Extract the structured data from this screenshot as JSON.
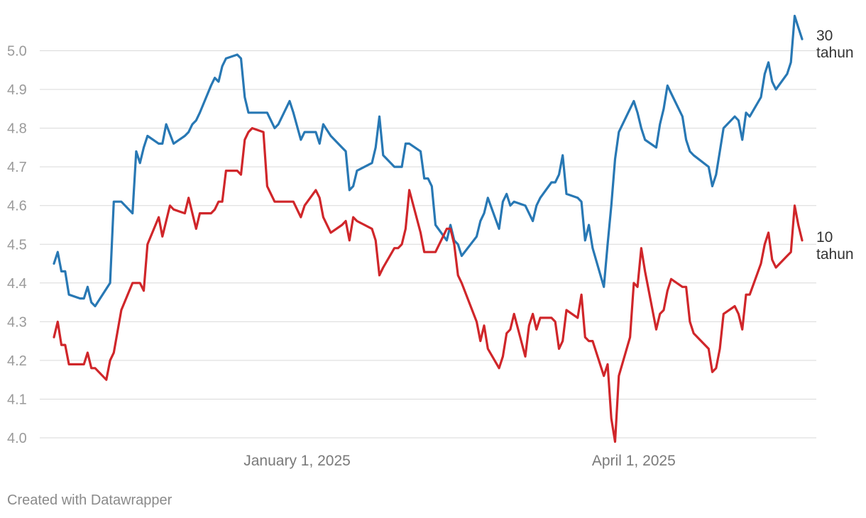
{
  "footer": {
    "credit": "Created with Datawrapper"
  },
  "chart_data": {
    "type": "line",
    "title": "",
    "xlabel": "",
    "ylabel": "",
    "grid": true,
    "legend": "direct labels at line ends (right)",
    "xlim": [
      "2024-10-28",
      "2025-06-03"
    ],
    "ylim": [
      4.0,
      5.1
    ],
    "y_ticks": [
      "4.0",
      "4.1",
      "4.2",
      "4.3",
      "4.4",
      "4.5",
      "4.6",
      "4.7",
      "4.8",
      "4.9",
      "5.0"
    ],
    "x_ticks": [
      {
        "date": "2025-01-01",
        "label": "January 1, 2025"
      },
      {
        "date": "2025-04-01",
        "label": "April 1, 2025"
      }
    ],
    "series": [
      {
        "name": "30 tahun",
        "label_lines": [
          "30",
          "tahun"
        ],
        "color": "#2878b4",
        "points": [
          [
            "2024-10-28",
            4.45
          ],
          [
            "2024-10-29",
            4.48
          ],
          [
            "2024-10-30",
            4.43
          ],
          [
            "2024-10-31",
            4.43
          ],
          [
            "2024-11-01",
            4.37
          ],
          [
            "2024-11-04",
            4.36
          ],
          [
            "2024-11-05",
            4.36
          ],
          [
            "2024-11-06",
            4.39
          ],
          [
            "2024-11-07",
            4.35
          ],
          [
            "2024-11-08",
            4.34
          ],
          [
            "2024-11-12",
            4.4
          ],
          [
            "2024-11-13",
            4.61
          ],
          [
            "2024-11-14",
            4.61
          ],
          [
            "2024-11-15",
            4.61
          ],
          [
            "2024-11-18",
            4.58
          ],
          [
            "2024-11-19",
            4.74
          ],
          [
            "2024-11-20",
            4.71
          ],
          [
            "2024-11-21",
            4.75
          ],
          [
            "2024-11-22",
            4.78
          ],
          [
            "2024-11-25",
            4.76
          ],
          [
            "2024-11-26",
            4.76
          ],
          [
            "2024-11-27",
            4.81
          ],
          [
            "2024-11-29",
            4.76
          ],
          [
            "2024-12-02",
            4.78
          ],
          [
            "2024-12-03",
            4.79
          ],
          [
            "2024-12-04",
            4.81
          ],
          [
            "2024-12-05",
            4.82
          ],
          [
            "2024-12-06",
            4.84
          ],
          [
            "2024-12-09",
            4.91
          ],
          [
            "2024-12-10",
            4.93
          ],
          [
            "2024-12-11",
            4.92
          ],
          [
            "2024-12-12",
            4.96
          ],
          [
            "2024-12-13",
            4.98
          ],
          [
            "2024-12-16",
            4.99
          ],
          [
            "2024-12-17",
            4.98
          ],
          [
            "2024-12-18",
            4.88
          ],
          [
            "2024-12-19",
            4.84
          ],
          [
            "2024-12-20",
            4.84
          ],
          [
            "2024-12-23",
            4.84
          ],
          [
            "2024-12-24",
            4.84
          ],
          [
            "2024-12-26",
            4.8
          ],
          [
            "2024-12-27",
            4.81
          ],
          [
            "2024-12-30",
            4.87
          ],
          [
            "2024-12-31",
            4.84
          ],
          [
            "2025-01-02",
            4.77
          ],
          [
            "2025-01-03",
            4.79
          ],
          [
            "2025-01-06",
            4.79
          ],
          [
            "2025-01-07",
            4.76
          ],
          [
            "2025-01-08",
            4.81
          ],
          [
            "2025-01-10",
            4.78
          ],
          [
            "2025-01-13",
            4.75
          ],
          [
            "2025-01-14",
            4.74
          ],
          [
            "2025-01-15",
            4.64
          ],
          [
            "2025-01-16",
            4.65
          ],
          [
            "2025-01-17",
            4.69
          ],
          [
            "2025-01-21",
            4.71
          ],
          [
            "2025-01-22",
            4.75
          ],
          [
            "2025-01-23",
            4.83
          ],
          [
            "2025-01-24",
            4.73
          ],
          [
            "2025-01-27",
            4.7
          ],
          [
            "2025-01-28",
            4.7
          ],
          [
            "2025-01-29",
            4.7
          ],
          [
            "2025-01-30",
            4.76
          ],
          [
            "2025-01-31",
            4.76
          ],
          [
            "2025-02-03",
            4.74
          ],
          [
            "2025-02-04",
            4.67
          ],
          [
            "2025-02-05",
            4.67
          ],
          [
            "2025-02-06",
            4.65
          ],
          [
            "2025-02-07",
            4.55
          ],
          [
            "2025-02-10",
            4.51
          ],
          [
            "2025-02-11",
            4.55
          ],
          [
            "2025-02-12",
            4.51
          ],
          [
            "2025-02-13",
            4.5
          ],
          [
            "2025-02-14",
            4.47
          ],
          [
            "2025-02-18",
            4.52
          ],
          [
            "2025-02-19",
            4.56
          ],
          [
            "2025-02-20",
            4.58
          ],
          [
            "2025-02-21",
            4.62
          ],
          [
            "2025-02-24",
            4.54
          ],
          [
            "2025-02-25",
            4.61
          ],
          [
            "2025-02-26",
            4.63
          ],
          [
            "2025-02-27",
            4.6
          ],
          [
            "2025-02-28",
            4.61
          ],
          [
            "2025-03-03",
            4.6
          ],
          [
            "2025-03-04",
            4.58
          ],
          [
            "2025-03-05",
            4.56
          ],
          [
            "2025-03-06",
            4.6
          ],
          [
            "2025-03-07",
            4.62
          ],
          [
            "2025-03-10",
            4.66
          ],
          [
            "2025-03-11",
            4.66
          ],
          [
            "2025-03-12",
            4.68
          ],
          [
            "2025-03-13",
            4.73
          ],
          [
            "2025-03-14",
            4.63
          ],
          [
            "2025-03-17",
            4.62
          ],
          [
            "2025-03-18",
            4.61
          ],
          [
            "2025-03-19",
            4.51
          ],
          [
            "2025-03-20",
            4.55
          ],
          [
            "2025-03-21",
            4.49
          ],
          [
            "2025-03-24",
            4.39
          ],
          [
            "2025-03-25",
            4.5
          ],
          [
            "2025-03-26",
            4.6
          ],
          [
            "2025-03-27",
            4.72
          ],
          [
            "2025-03-28",
            4.79
          ],
          [
            "2025-03-31",
            4.85
          ],
          [
            "2025-04-01",
            4.87
          ],
          [
            "2025-04-02",
            4.84
          ],
          [
            "2025-04-03",
            4.8
          ],
          [
            "2025-04-04",
            4.77
          ],
          [
            "2025-04-07",
            4.75
          ],
          [
            "2025-04-08",
            4.81
          ],
          [
            "2025-04-09",
            4.85
          ],
          [
            "2025-04-10",
            4.91
          ],
          [
            "2025-04-11",
            4.89
          ],
          [
            "2025-04-14",
            4.83
          ],
          [
            "2025-04-15",
            4.77
          ],
          [
            "2025-04-16",
            4.74
          ],
          [
            "2025-04-17",
            4.73
          ],
          [
            "2025-04-21",
            4.7
          ],
          [
            "2025-04-22",
            4.65
          ],
          [
            "2025-04-23",
            4.68
          ],
          [
            "2025-04-24",
            4.74
          ],
          [
            "2025-04-25",
            4.8
          ],
          [
            "2025-04-28",
            4.83
          ],
          [
            "2025-04-29",
            4.82
          ],
          [
            "2025-04-30",
            4.77
          ],
          [
            "2025-05-01",
            4.84
          ],
          [
            "2025-05-02",
            4.83
          ],
          [
            "2025-05-05",
            4.88
          ],
          [
            "2025-05-06",
            4.94
          ],
          [
            "2025-05-07",
            4.97
          ],
          [
            "2025-05-08",
            4.92
          ],
          [
            "2025-05-09",
            4.9
          ],
          [
            "2025-05-12",
            4.94
          ],
          [
            "2025-05-13",
            4.97
          ],
          [
            "2025-05-14",
            5.09
          ],
          [
            "2025-05-15",
            5.06
          ],
          [
            "2025-05-16",
            5.03
          ]
        ]
      },
      {
        "name": "10 tahun",
        "label_lines": [
          "10",
          "tahun"
        ],
        "color": "#d0262a",
        "points": [
          [
            "2024-10-28",
            4.26
          ],
          [
            "2024-10-29",
            4.3
          ],
          [
            "2024-10-30",
            4.24
          ],
          [
            "2024-10-31",
            4.24
          ],
          [
            "2024-11-01",
            4.19
          ],
          [
            "2024-11-04",
            4.19
          ],
          [
            "2024-11-05",
            4.19
          ],
          [
            "2024-11-06",
            4.22
          ],
          [
            "2024-11-07",
            4.18
          ],
          [
            "2024-11-08",
            4.18
          ],
          [
            "2024-11-11",
            4.15
          ],
          [
            "2024-11-12",
            4.2
          ],
          [
            "2024-11-13",
            4.22
          ],
          [
            "2024-11-15",
            4.33
          ],
          [
            "2024-11-18",
            4.4
          ],
          [
            "2024-11-19",
            4.4
          ],
          [
            "2024-11-20",
            4.4
          ],
          [
            "2024-11-21",
            4.38
          ],
          [
            "2024-11-22",
            4.5
          ],
          [
            "2024-11-25",
            4.57
          ],
          [
            "2024-11-26",
            4.52
          ],
          [
            "2024-11-27",
            4.56
          ],
          [
            "2024-11-28",
            4.6
          ],
          [
            "2024-11-29",
            4.59
          ],
          [
            "2024-12-02",
            4.58
          ],
          [
            "2024-12-03",
            4.62
          ],
          [
            "2024-12-04",
            4.58
          ],
          [
            "2024-12-05",
            4.54
          ],
          [
            "2024-12-06",
            4.58
          ],
          [
            "2024-12-09",
            4.58
          ],
          [
            "2024-12-10",
            4.59
          ],
          [
            "2024-12-11",
            4.61
          ],
          [
            "2024-12-12",
            4.61
          ],
          [
            "2024-12-13",
            4.69
          ],
          [
            "2024-12-16",
            4.69
          ],
          [
            "2024-12-17",
            4.68
          ],
          [
            "2024-12-18",
            4.77
          ],
          [
            "2024-12-19",
            4.79
          ],
          [
            "2024-12-20",
            4.8
          ],
          [
            "2024-12-23",
            4.79
          ],
          [
            "2024-12-24",
            4.65
          ],
          [
            "2024-12-26",
            4.61
          ],
          [
            "2024-12-27",
            4.61
          ],
          [
            "2024-12-30",
            4.61
          ],
          [
            "2024-12-31",
            4.61
          ],
          [
            "2025-01-02",
            4.57
          ],
          [
            "2025-01-03",
            4.6
          ],
          [
            "2025-01-06",
            4.64
          ],
          [
            "2025-01-07",
            4.62
          ],
          [
            "2025-01-08",
            4.57
          ],
          [
            "2025-01-10",
            4.53
          ],
          [
            "2025-01-13",
            4.55
          ],
          [
            "2025-01-14",
            4.56
          ],
          [
            "2025-01-15",
            4.51
          ],
          [
            "2025-01-16",
            4.57
          ],
          [
            "2025-01-17",
            4.56
          ],
          [
            "2025-01-21",
            4.54
          ],
          [
            "2025-01-22",
            4.51
          ],
          [
            "2025-01-23",
            4.42
          ],
          [
            "2025-01-24",
            4.44
          ],
          [
            "2025-01-27",
            4.49
          ],
          [
            "2025-01-28",
            4.49
          ],
          [
            "2025-01-29",
            4.5
          ],
          [
            "2025-01-30",
            4.54
          ],
          [
            "2025-01-31",
            4.64
          ],
          [
            "2025-02-03",
            4.53
          ],
          [
            "2025-02-04",
            4.48
          ],
          [
            "2025-02-05",
            4.48
          ],
          [
            "2025-02-06",
            4.48
          ],
          [
            "2025-02-07",
            4.48
          ],
          [
            "2025-02-10",
            4.54
          ],
          [
            "2025-02-11",
            4.54
          ],
          [
            "2025-02-12",
            4.5
          ],
          [
            "2025-02-13",
            4.42
          ],
          [
            "2025-02-14",
            4.4
          ],
          [
            "2025-02-18",
            4.3
          ],
          [
            "2025-02-19",
            4.25
          ],
          [
            "2025-02-20",
            4.29
          ],
          [
            "2025-02-21",
            4.23
          ],
          [
            "2025-02-24",
            4.18
          ],
          [
            "2025-02-25",
            4.21
          ],
          [
            "2025-02-26",
            4.27
          ],
          [
            "2025-02-27",
            4.28
          ],
          [
            "2025-02-28",
            4.32
          ],
          [
            "2025-03-03",
            4.21
          ],
          [
            "2025-03-04",
            4.29
          ],
          [
            "2025-03-05",
            4.32
          ],
          [
            "2025-03-06",
            4.28
          ],
          [
            "2025-03-07",
            4.31
          ],
          [
            "2025-03-10",
            4.31
          ],
          [
            "2025-03-11",
            4.3
          ],
          [
            "2025-03-12",
            4.23
          ],
          [
            "2025-03-13",
            4.25
          ],
          [
            "2025-03-14",
            4.33
          ],
          [
            "2025-03-17",
            4.31
          ],
          [
            "2025-03-18",
            4.37
          ],
          [
            "2025-03-19",
            4.26
          ],
          [
            "2025-03-20",
            4.25
          ],
          [
            "2025-03-21",
            4.25
          ],
          [
            "2025-03-24",
            4.16
          ],
          [
            "2025-03-25",
            4.19
          ],
          [
            "2025-03-26",
            4.05
          ],
          [
            "2025-03-27",
            3.99
          ],
          [
            "2025-03-28",
            4.16
          ],
          [
            "2025-03-31",
            4.26
          ],
          [
            "2025-04-01",
            4.4
          ],
          [
            "2025-04-02",
            4.39
          ],
          [
            "2025-04-03",
            4.49
          ],
          [
            "2025-04-04",
            4.43
          ],
          [
            "2025-04-07",
            4.28
          ],
          [
            "2025-04-08",
            4.32
          ],
          [
            "2025-04-09",
            4.33
          ],
          [
            "2025-04-10",
            4.38
          ],
          [
            "2025-04-11",
            4.41
          ],
          [
            "2025-04-14",
            4.39
          ],
          [
            "2025-04-15",
            4.39
          ],
          [
            "2025-04-16",
            4.3
          ],
          [
            "2025-04-17",
            4.27
          ],
          [
            "2025-04-21",
            4.23
          ],
          [
            "2025-04-22",
            4.17
          ],
          [
            "2025-04-23",
            4.18
          ],
          [
            "2025-04-24",
            4.23
          ],
          [
            "2025-04-25",
            4.32
          ],
          [
            "2025-04-28",
            4.34
          ],
          [
            "2025-04-29",
            4.32
          ],
          [
            "2025-04-30",
            4.28
          ],
          [
            "2025-05-01",
            4.37
          ],
          [
            "2025-05-02",
            4.37
          ],
          [
            "2025-05-05",
            4.45
          ],
          [
            "2025-05-06",
            4.5
          ],
          [
            "2025-05-07",
            4.53
          ],
          [
            "2025-05-08",
            4.46
          ],
          [
            "2025-05-09",
            4.44
          ],
          [
            "2025-05-12",
            4.47
          ],
          [
            "2025-05-13",
            4.48
          ],
          [
            "2025-05-14",
            4.6
          ],
          [
            "2025-05-15",
            4.55
          ],
          [
            "2025-05-16",
            4.51
          ]
        ]
      }
    ]
  }
}
